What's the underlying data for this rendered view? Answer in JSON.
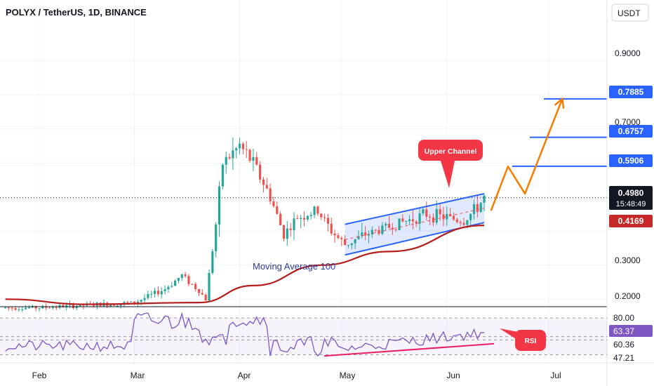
{
  "header": {
    "title": "POLYX / TetherUS, 1D, BINANCE",
    "currency_button": "USDT"
  },
  "price_axis": {
    "ticks": [
      "0.9000",
      "0.7000",
      "0.3000",
      "0.2000"
    ]
  },
  "price_labels": [
    {
      "text": "0.7885",
      "value": 0.7885,
      "color": "#2962ff",
      "role": "target"
    },
    {
      "text": "0.6757",
      "value": 0.6757,
      "color": "#2962ff",
      "role": "target"
    },
    {
      "text": "0.5906",
      "value": 0.5906,
      "color": "#2962ff",
      "role": "target"
    },
    {
      "text": "0.4980",
      "value": 0.498,
      "color": "#131722",
      "role": "last-price"
    },
    {
      "text": "0.4169",
      "value": 0.4169,
      "color": "#c62828",
      "role": "moving-average"
    }
  ],
  "countdown": "15:48:49",
  "annotations": {
    "upper_channel": "Upper Channel",
    "moving_average": "Moving Average 100",
    "rsi": "RSI"
  },
  "rsi_axis": {
    "ticks": [
      "80.00",
      "63.37",
      "60.36",
      "47.21"
    ]
  },
  "time_axis": {
    "ticks": [
      "Feb",
      "Mar",
      "Apr",
      "May",
      "Jun",
      "Jul"
    ]
  },
  "colors": {
    "up": "#26a69a",
    "down": "#ef5350",
    "channel": "#2962ff",
    "ma": "#b71c1c",
    "projection": "#f57c00",
    "rsi": "#7e57c2",
    "rsi_trend": "#e91e63",
    "callout": "#f23645"
  },
  "chart_data": {
    "type": "candlestick",
    "title": "POLYX / TetherUS, 1D, BINANCE",
    "ylim": [
      0.18,
      1.0
    ],
    "x_categories": [
      "Feb",
      "Mar",
      "Apr",
      "May",
      "Jun",
      "Jul"
    ],
    "close_path": [
      [
        "Jan 22",
        0.175
      ],
      [
        "Feb 01",
        0.175
      ],
      [
        "Feb 10",
        0.18
      ],
      [
        "Feb 20",
        0.185
      ],
      [
        "Mar 01",
        0.19
      ],
      [
        "Mar 10",
        0.23
      ],
      [
        "Mar 15",
        0.27
      ],
      [
        "Mar 20",
        0.225
      ],
      [
        "Mar 22",
        0.2
      ],
      [
        "Mar 25",
        0.42
      ],
      [
        "Mar 27",
        0.6
      ],
      [
        "Apr 01",
        0.65
      ],
      [
        "Apr 05",
        0.6
      ],
      [
        "Apr 10",
        0.5
      ],
      [
        "Apr 14",
        0.39
      ],
      [
        "Apr 18",
        0.44
      ],
      [
        "Apr 24",
        0.46
      ],
      [
        "Apr 28",
        0.4
      ],
      [
        "May 02",
        0.36
      ],
      [
        "May 08",
        0.39
      ],
      [
        "May 14",
        0.41
      ],
      [
        "May 20",
        0.43
      ],
      [
        "May 26",
        0.45
      ],
      [
        "Jun 01",
        0.44
      ],
      [
        "Jun 06",
        0.43
      ],
      [
        "Jun 10",
        0.47
      ],
      [
        "Jun 12",
        0.498
      ]
    ],
    "moving_average_100": [
      [
        "Jan 22",
        0.2
      ],
      [
        "Feb 15",
        0.185
      ],
      [
        "Mar 20",
        0.19
      ],
      [
        "Apr 05",
        0.24
      ],
      [
        "Apr 25",
        0.3
      ],
      [
        "May 15",
        0.34
      ],
      [
        "Jun 12",
        0.4169
      ]
    ],
    "channel": {
      "upper": [
        [
          "May 02",
          0.42
        ],
        [
          "Jun 12",
          0.51
        ]
      ],
      "lower": [
        [
          "May 02",
          0.33
        ],
        [
          "Jun 12",
          0.425
        ]
      ]
    },
    "horizontal_levels": [
      0.7885,
      0.6757,
      0.5906
    ],
    "projection_path": [
      [
        "Jun 14",
        0.46
      ],
      [
        "Jun 19",
        0.59
      ],
      [
        "Jun 24",
        0.51
      ],
      [
        "Jul 05",
        0.7885
      ]
    ],
    "rsi": {
      "ylim": [
        40,
        90
      ],
      "levels": [
        80,
        63.37,
        60.36,
        47.21
      ],
      "trendline": [
        [
          "May 01",
          48
        ],
        [
          "Jun 12",
          57
        ]
      ]
    }
  }
}
